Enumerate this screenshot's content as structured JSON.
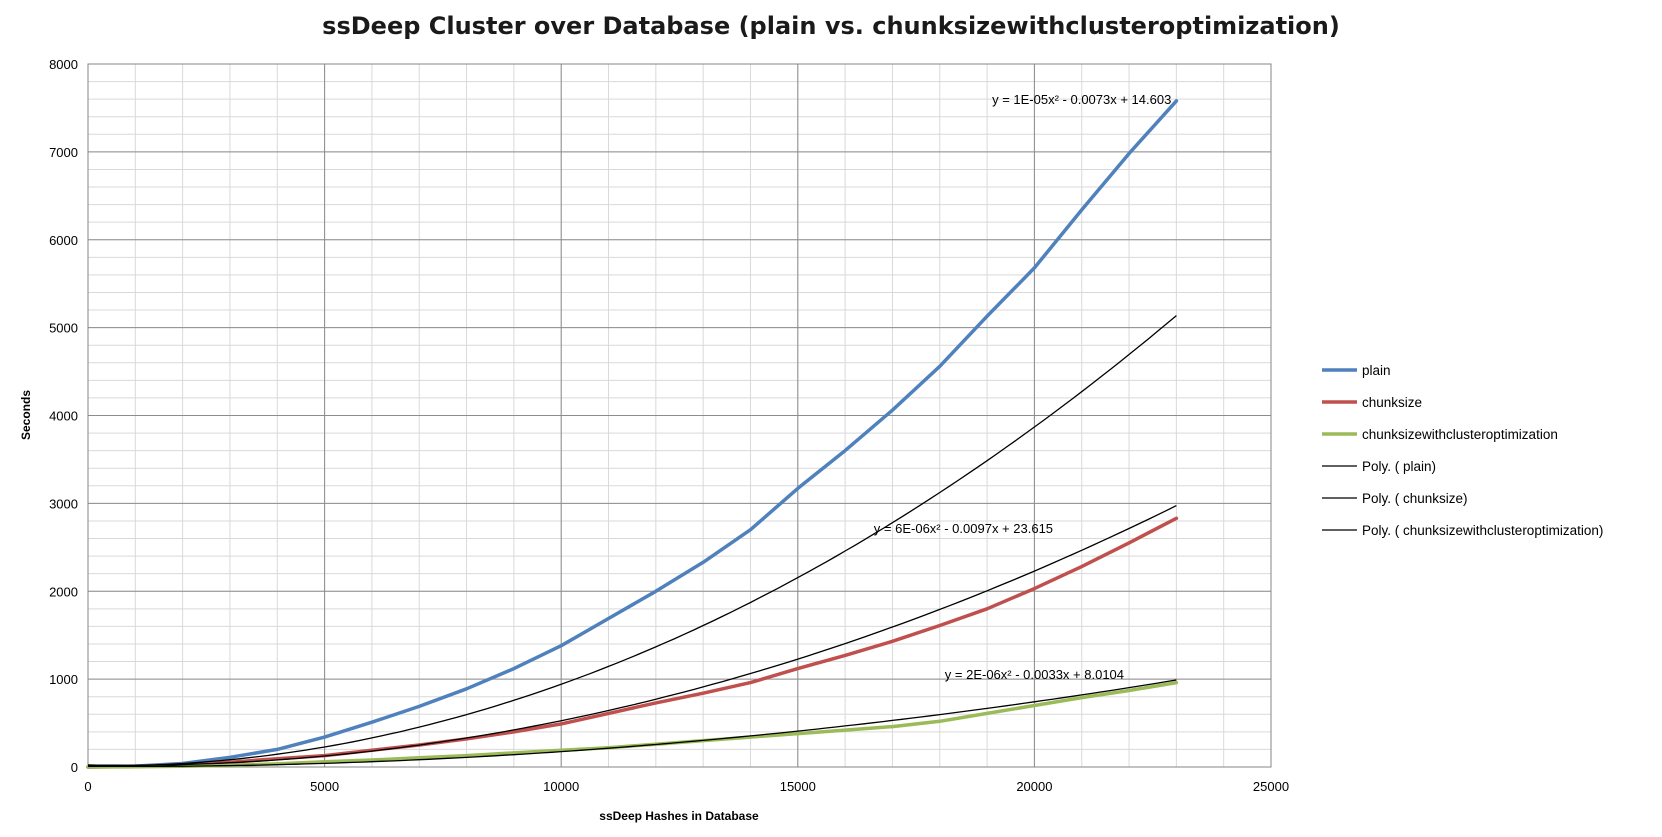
{
  "chart_data": {
    "type": "line",
    "title": "ssDeep Cluster over Database (plain vs. chunksizewithclusteroptimization)",
    "xlabel": "ssDeep Hashes in Database",
    "ylabel": "Seconds",
    "xlim": [
      0,
      25000
    ],
    "ylim": [
      0,
      8000
    ],
    "x_ticks": [
      0,
      5000,
      10000,
      15000,
      20000,
      25000
    ],
    "y_ticks": [
      0,
      1000,
      2000,
      3000,
      4000,
      5000,
      6000,
      7000,
      8000
    ],
    "grid": true,
    "legend_position": "right",
    "x": [
      0,
      1000,
      2000,
      3000,
      4000,
      5000,
      6000,
      7000,
      8000,
      9000,
      10000,
      11000,
      12000,
      13000,
      14000,
      15000,
      16000,
      17000,
      18000,
      19000,
      20000,
      21000,
      22000,
      23000
    ],
    "series": [
      {
        "name": "plain",
        "color": "#4f81bd",
        "values": [
          0,
          10,
          40,
          110,
          200,
          340,
          510,
          690,
          890,
          1120,
          1380,
          1690,
          2000,
          2330,
          2700,
          3170,
          3600,
          4060,
          4560,
          5130,
          5680,
          6340,
          6980,
          7580
        ]
      },
      {
        "name": "chunksize",
        "color": "#c0504d",
        "values": [
          0,
          5,
          25,
          55,
          95,
          130,
          190,
          250,
          320,
          400,
          490,
          610,
          730,
          840,
          960,
          1120,
          1270,
          1430,
          1610,
          1800,
          2030,
          2280,
          2550,
          2830
        ]
      },
      {
        "name": "chunksizewithclusteroptimization",
        "color": "#9bbb59",
        "values": [
          0,
          2,
          8,
          20,
          35,
          60,
          80,
          105,
          130,
          160,
          190,
          220,
          260,
          300,
          340,
          380,
          420,
          460,
          520,
          610,
          700,
          790,
          870,
          960
        ]
      }
    ],
    "trendlines": [
      {
        "name": "Poly. ( plain)",
        "color": "#000000",
        "coef": [
          1e-05,
          -0.0073,
          14.603
        ],
        "equation": "y = 1E-05x² - 0.0073x + 14.603"
      },
      {
        "name": "Poly. ( chunksize)",
        "color": "#000000",
        "coef": [
          6e-06,
          -0.0097,
          23.615
        ],
        "equation": "y = 6E-06x² - 0.0097x + 23.615"
      },
      {
        "name": "Poly. ( chunksizewithclusteroptimization)",
        "color": "#000000",
        "coef": [
          2e-06,
          -0.0033,
          8.0104
        ],
        "equation": "y = 2E-06x² - 0.0033x + 8.0104"
      }
    ]
  }
}
